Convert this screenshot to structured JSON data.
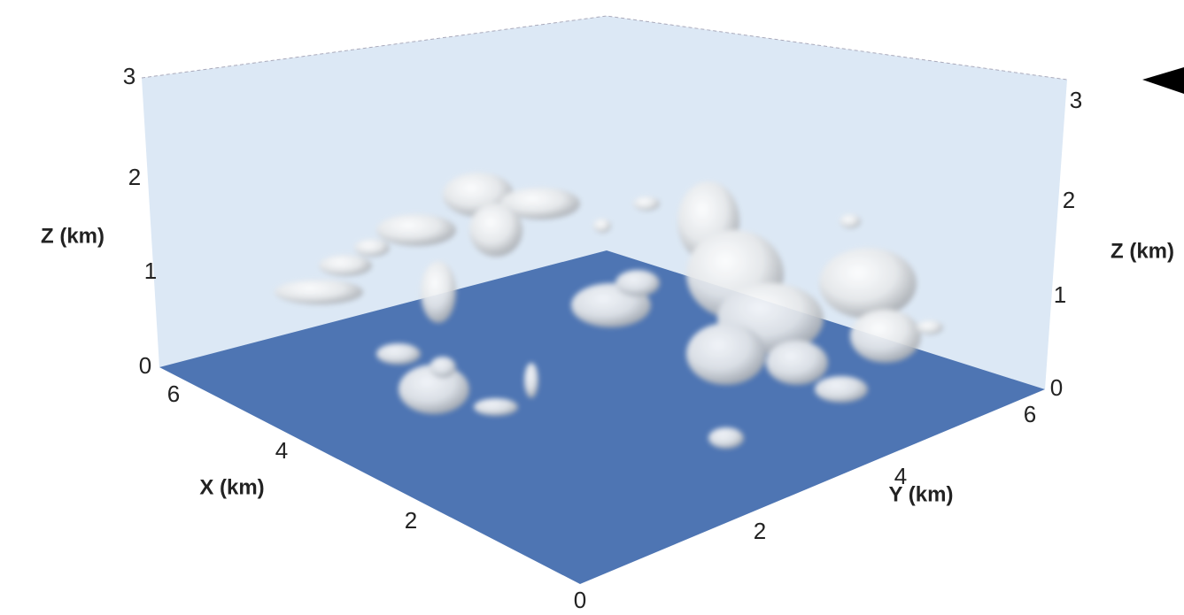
{
  "z_axis_left": {
    "label": "Z (km)",
    "ticks": [
      "0",
      "1",
      "2",
      "3"
    ]
  },
  "z_axis_right": {
    "label": "Z (km)",
    "ticks": [
      "0",
      "1",
      "2",
      "3"
    ]
  },
  "x_axis": {
    "label": "X (km)",
    "ticks": [
      "0",
      "2",
      "4",
      "6"
    ]
  },
  "y_axis": {
    "label": "Y (km)",
    "ticks": [
      "2",
      "4",
      "6"
    ]
  }
}
